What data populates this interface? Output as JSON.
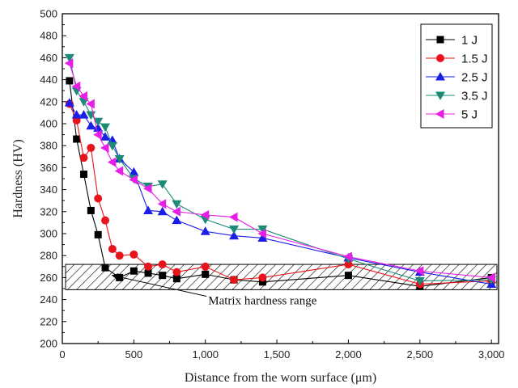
{
  "chart_data": {
    "type": "line",
    "title": "",
    "xlabel": "Distance from the worn surface (μm)",
    "ylabel": "Hardness (HV)",
    "xlim": [
      0,
      3050
    ],
    "ylim": [
      200,
      500
    ],
    "xticks": [
      0,
      500,
      1000,
      1500,
      2000,
      2500,
      3000
    ],
    "xtick_labels": [
      "0",
      "500",
      "1,000",
      "1,500",
      "2,000",
      "2,500",
      "3,000"
    ],
    "yticks": [
      200,
      220,
      240,
      260,
      280,
      300,
      320,
      340,
      360,
      380,
      400,
      420,
      440,
      460,
      480,
      500
    ],
    "grid": false,
    "legend_position": "top-right",
    "band": {
      "y_low": 249,
      "y_high": 272,
      "label": "Matrix hardness range",
      "label_x": 1020,
      "label_y": 240,
      "arrow_to_x": 350,
      "arrow_to_y": 262
    },
    "series": [
      {
        "name": "1 J",
        "color": "#000000",
        "marker": "square",
        "x": [
          50,
          100,
          150,
          200,
          250,
          300,
          400,
          500,
          600,
          700,
          800,
          1000,
          1200,
          1400,
          2000,
          2500,
          3000
        ],
        "y": [
          439,
          386,
          354,
          321,
          299,
          269,
          260,
          266,
          264,
          262,
          259,
          263,
          258,
          256,
          262,
          252,
          260
        ]
      },
      {
        "name": "1.5 J",
        "color": "#e8141b",
        "marker": "circle",
        "x": [
          50,
          100,
          150,
          200,
          250,
          300,
          350,
          400,
          500,
          600,
          700,
          800,
          1000,
          1200,
          1400,
          2000,
          2500,
          3000
        ],
        "y": [
          418,
          403,
          369,
          378,
          332,
          312,
          286,
          280,
          281,
          270,
          272,
          265,
          270,
          258,
          260,
          272,
          254,
          257
        ]
      },
      {
        "name": "2.5 J",
        "color": "#1a1ee6",
        "marker": "triangle-up",
        "x": [
          50,
          100,
          150,
          200,
          250,
          300,
          350,
          400,
          500,
          600,
          700,
          800,
          1000,
          1200,
          1400,
          2000,
          2500,
          3000
        ],
        "y": [
          419,
          408,
          408,
          398,
          396,
          388,
          385,
          368,
          356,
          321,
          320,
          312,
          302,
          298,
          296,
          278,
          265,
          254
        ]
      },
      {
        "name": "3.5 J",
        "color": "#1d8a78",
        "marker": "triangle-down",
        "x": [
          50,
          100,
          150,
          200,
          250,
          300,
          350,
          400,
          500,
          600,
          700,
          800,
          1000,
          1200,
          1400,
          2000,
          2500,
          3000
        ],
        "y": [
          460,
          430,
          420,
          408,
          402,
          397,
          380,
          368,
          350,
          343,
          345,
          327,
          313,
          304,
          304,
          277,
          257,
          258
        ]
      },
      {
        "name": "5 J",
        "color": "#e81ee6",
        "marker": "triangle-left",
        "x": [
          50,
          100,
          150,
          200,
          250,
          300,
          350,
          400,
          500,
          600,
          700,
          800,
          1000,
          1200,
          1400,
          2000,
          2500,
          3000
        ],
        "y": [
          455,
          434,
          425,
          418,
          390,
          378,
          365,
          357,
          349,
          341,
          327,
          320,
          317,
          315,
          300,
          279,
          266,
          260
        ]
      }
    ]
  }
}
